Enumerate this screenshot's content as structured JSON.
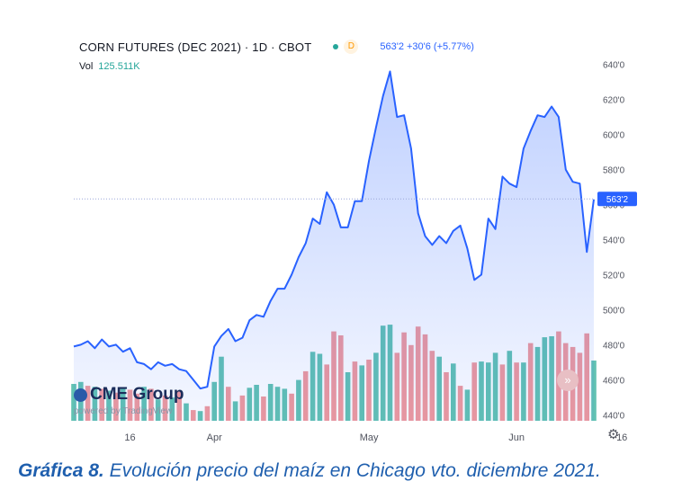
{
  "header": {
    "title": "CORN FUTURES (DEC 2021) · 1D · CBOT",
    "d_label": "D",
    "quote": "563'2 +30'6 (+5.77%)",
    "vol_label": "Vol",
    "vol_value": "125.511K"
  },
  "branding": {
    "logo_text": "CME Group",
    "powered": "powered by TradingView"
  },
  "caption": {
    "prefix": "Gráfica 8.",
    "text": " Evolución precio del maíz en Chicago vto. diciembre 2021."
  },
  "icons": {
    "forward": "double-chevron-right-icon",
    "settings": "gear-icon"
  },
  "chart_data": {
    "type": "area",
    "title": "CORN FUTURES (DEC 2021) · 1D · CBOT",
    "y_tick_labels": [
      "440'0",
      "460'0",
      "480'0",
      "500'0",
      "520'0",
      "540'0",
      "560'0",
      "580'0",
      "600'0",
      "620'0",
      "640'0"
    ],
    "y_tick_values": [
      440,
      460,
      480,
      500,
      520,
      540,
      560,
      580,
      600,
      620,
      640
    ],
    "x_tick_labels": [
      "16",
      "Apr",
      "May",
      "Jun",
      "16"
    ],
    "x_tick_index": [
      8,
      20,
      42,
      63,
      78
    ],
    "ylim": [
      433,
      646
    ],
    "last_price_label": "563'2",
    "last_price": 563.25,
    "grid": false,
    "colors": {
      "line": "#2962ff",
      "up_volume": "#62c2b2",
      "down_volume": "#f0999c",
      "price_line": "#9aa6d8"
    },
    "series": [
      {
        "type": "line",
        "values": [
          479,
          480,
          482,
          478,
          483,
          479,
          480,
          476,
          478,
          470,
          469,
          466,
          470,
          468,
          469,
          466,
          465,
          460,
          455,
          456,
          479,
          485,
          489,
          482,
          484,
          494,
          497,
          496,
          505,
          512,
          512,
          520,
          530,
          538,
          552,
          549,
          567,
          560,
          547,
          547,
          562,
          562,
          585,
          604,
          622,
          636,
          610,
          611,
          592,
          555,
          542,
          537,
          542,
          538,
          545,
          548,
          535,
          517,
          520,
          552,
          546,
          576,
          572,
          570,
          592,
          602,
          611,
          610,
          616,
          610,
          580,
          573,
          572,
          533,
          563
        ]
      }
    ],
    "volume_scale": [
      0,
      100
    ],
    "volume": [
      {
        "v": 38,
        "up": true
      },
      {
        "v": 40,
        "up": true
      },
      {
        "v": 36,
        "up": false
      },
      {
        "v": 35,
        "up": true
      },
      {
        "v": 33,
        "up": false
      },
      {
        "v": 31,
        "up": true
      },
      {
        "v": 29,
        "up": false
      },
      {
        "v": 34,
        "up": true
      },
      {
        "v": 32,
        "up": false
      },
      {
        "v": 28,
        "up": false
      },
      {
        "v": 35,
        "up": true
      },
      {
        "v": 33,
        "up": false
      },
      {
        "v": 22,
        "up": true
      },
      {
        "v": 26,
        "up": false
      },
      {
        "v": 24,
        "up": true
      },
      {
        "v": 31,
        "up": false
      },
      {
        "v": 18,
        "up": true
      },
      {
        "v": 11,
        "up": false
      },
      {
        "v": 10,
        "up": true
      },
      {
        "v": 15,
        "up": false
      },
      {
        "v": 40,
        "up": true
      },
      {
        "v": 66,
        "up": true
      },
      {
        "v": 35,
        "up": false
      },
      {
        "v": 20,
        "up": true
      },
      {
        "v": 26,
        "up": false
      },
      {
        "v": 34,
        "up": true
      },
      {
        "v": 37,
        "up": true
      },
      {
        "v": 25,
        "up": false
      },
      {
        "v": 38,
        "up": true
      },
      {
        "v": 35,
        "up": true
      },
      {
        "v": 33,
        "up": true
      },
      {
        "v": 28,
        "up": false
      },
      {
        "v": 42,
        "up": true
      },
      {
        "v": 51,
        "up": false
      },
      {
        "v": 71,
        "up": true
      },
      {
        "v": 69,
        "up": true
      },
      {
        "v": 58,
        "up": false
      },
      {
        "v": 92,
        "up": false
      },
      {
        "v": 88,
        "up": false
      },
      {
        "v": 50,
        "up": true
      },
      {
        "v": 61,
        "up": false
      },
      {
        "v": 57,
        "up": true
      },
      {
        "v": 63,
        "up": false
      },
      {
        "v": 70,
        "up": true
      },
      {
        "v": 98,
        "up": true
      },
      {
        "v": 99,
        "up": true
      },
      {
        "v": 70,
        "up": false
      },
      {
        "v": 91,
        "up": false
      },
      {
        "v": 78,
        "up": false
      },
      {
        "v": 97,
        "up": false
      },
      {
        "v": 89,
        "up": false
      },
      {
        "v": 72,
        "up": false
      },
      {
        "v": 66,
        "up": true
      },
      {
        "v": 50,
        "up": false
      },
      {
        "v": 59,
        "up": true
      },
      {
        "v": 36,
        "up": false
      },
      {
        "v": 32,
        "up": true
      },
      {
        "v": 60,
        "up": false
      },
      {
        "v": 61,
        "up": true
      },
      {
        "v": 60,
        "up": true
      },
      {
        "v": 70,
        "up": true
      },
      {
        "v": 58,
        "up": false
      },
      {
        "v": 72,
        "up": true
      },
      {
        "v": 60,
        "up": false
      },
      {
        "v": 60,
        "up": true
      },
      {
        "v": 80,
        "up": false
      },
      {
        "v": 76,
        "up": true
      },
      {
        "v": 86,
        "up": true
      },
      {
        "v": 87,
        "up": true
      },
      {
        "v": 92,
        "up": false
      },
      {
        "v": 80,
        "up": false
      },
      {
        "v": 76,
        "up": false
      },
      {
        "v": 70,
        "up": false
      },
      {
        "v": 90,
        "up": false
      },
      {
        "v": 62,
        "up": true
      }
    ]
  }
}
